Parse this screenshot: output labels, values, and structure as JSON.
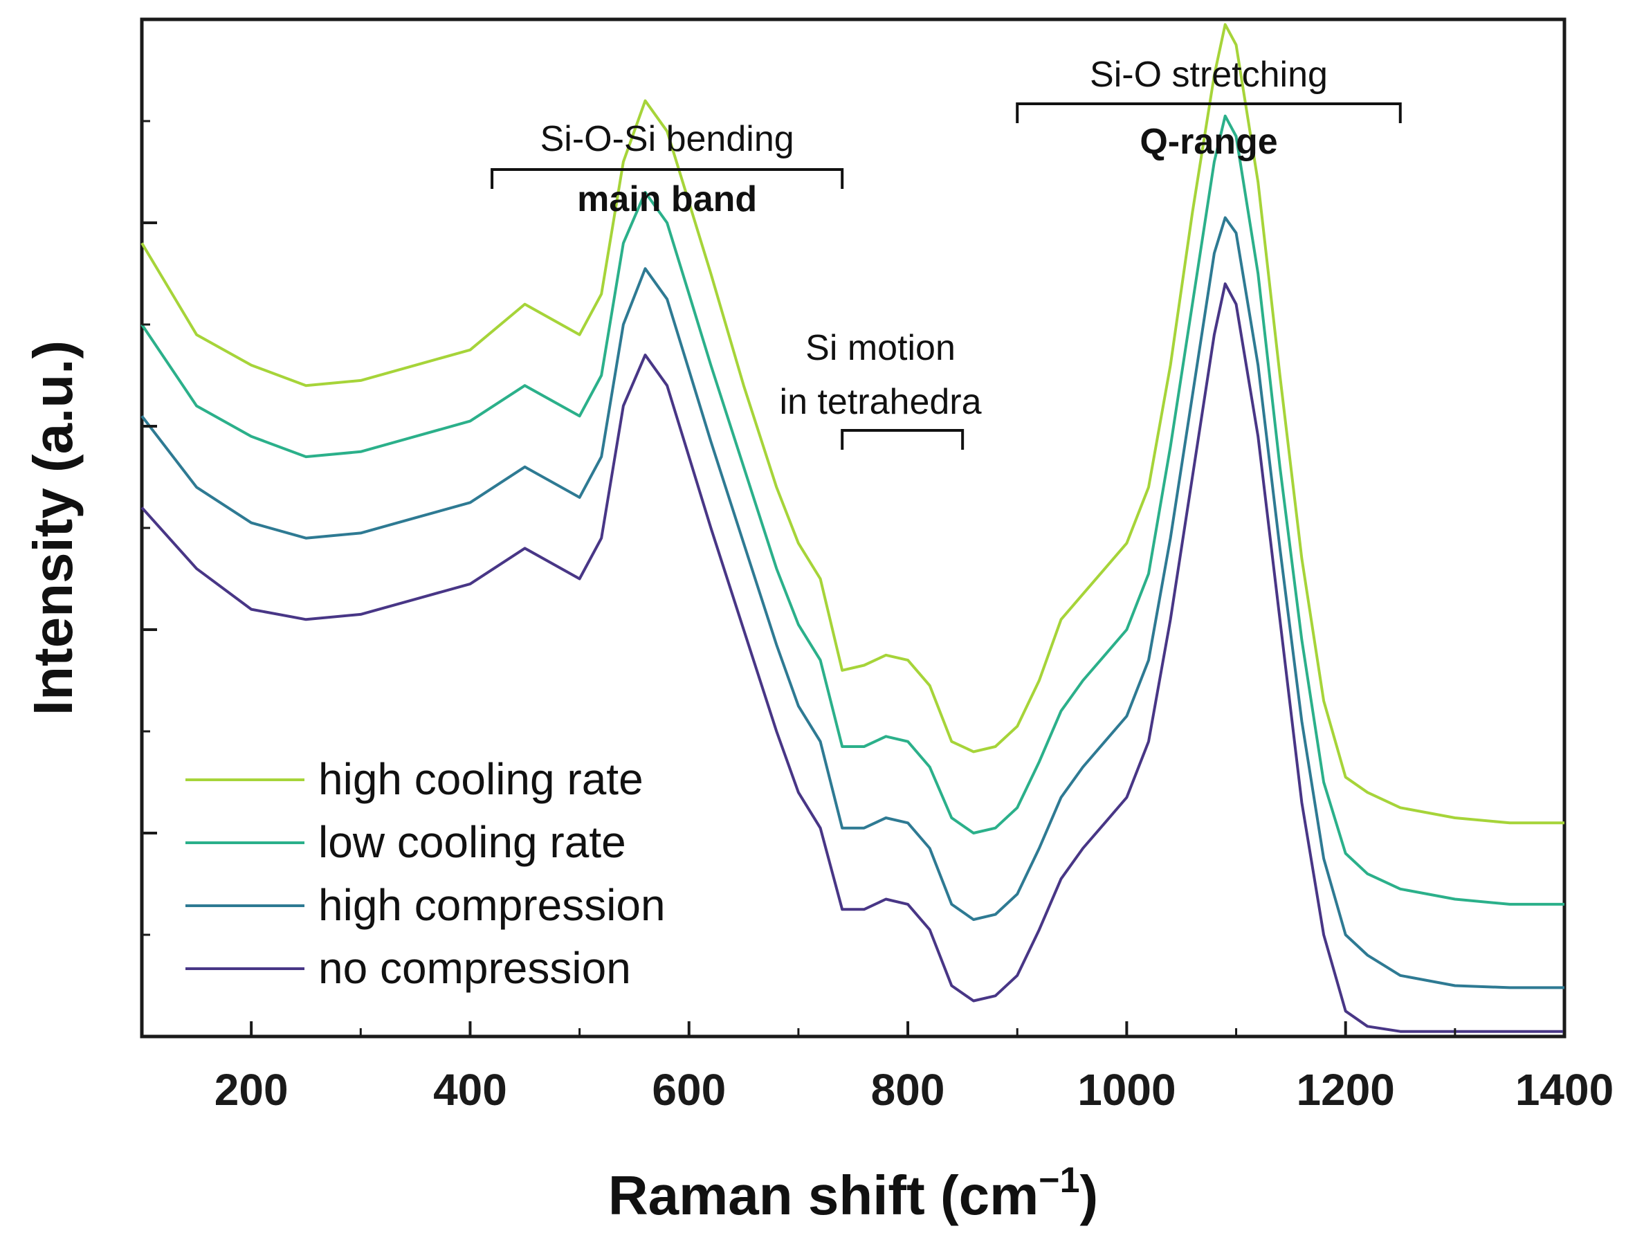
{
  "chart_data": {
    "type": "line",
    "title": "",
    "xlabel": "Raman shift (cm",
    "xlabel_superscript": "−1",
    "xlabel_suffix": ")",
    "ylabel": "Intensity (a.u.)",
    "xlim": [
      100,
      1400
    ],
    "ylim": [
      0,
      10
    ],
    "x_ticks": [
      200,
      400,
      600,
      800,
      1000,
      1200,
      1400
    ],
    "y_ticks_unlabeled": [
      2.0,
      4.0,
      6.0,
      8.0
    ],
    "grid": false,
    "legend_position": "bottom-left",
    "annotations": [
      {
        "id": "bending",
        "line1": "Si-O-Si bending",
        "line2": "main band",
        "x_range": [
          420,
          740
        ]
      },
      {
        "id": "motion",
        "line1": "Si motion",
        "line2": "in tetrahedra",
        "x_range": [
          740,
          850
        ]
      },
      {
        "id": "stretching",
        "line1": "Si-O stretching",
        "line2": "Q-range",
        "x_range": [
          900,
          1250
        ]
      }
    ],
    "series": [
      {
        "name": "high cooling rate",
        "color": "#a6d439",
        "x": [
          100,
          150,
          200,
          250,
          300,
          350,
          400,
          450,
          500,
          520,
          540,
          560,
          580,
          600,
          620,
          650,
          680,
          700,
          720,
          740,
          760,
          780,
          800,
          820,
          840,
          860,
          880,
          900,
          920,
          940,
          960,
          980,
          1000,
          1020,
          1040,
          1060,
          1080,
          1090,
          1100,
          1120,
          1140,
          1160,
          1180,
          1200,
          1220,
          1250,
          1300,
          1350,
          1400
        ],
        "values": [
          7.8,
          6.9,
          6.6,
          6.4,
          6.45,
          6.6,
          6.75,
          7.2,
          6.9,
          7.3,
          8.6,
          9.2,
          8.9,
          8.2,
          7.5,
          6.4,
          5.4,
          4.85,
          4.5,
          3.6,
          3.65,
          3.75,
          3.7,
          3.45,
          2.9,
          2.8,
          2.85,
          3.05,
          3.5,
          4.1,
          4.35,
          4.6,
          4.85,
          5.4,
          6.6,
          8.1,
          9.45,
          9.95,
          9.75,
          8.4,
          6.5,
          4.7,
          3.3,
          2.55,
          2.4,
          2.25,
          2.15,
          2.1,
          2.1
        ]
      },
      {
        "name": "low cooling rate",
        "color": "#2bb08a",
        "x": [
          100,
          150,
          200,
          250,
          300,
          350,
          400,
          450,
          500,
          520,
          540,
          560,
          580,
          600,
          620,
          650,
          680,
          700,
          720,
          740,
          760,
          780,
          800,
          820,
          840,
          860,
          880,
          900,
          920,
          940,
          960,
          980,
          1000,
          1020,
          1040,
          1060,
          1080,
          1090,
          1100,
          1120,
          1140,
          1160,
          1180,
          1200,
          1220,
          1250,
          1300,
          1350,
          1400
        ],
        "values": [
          7.0,
          6.2,
          5.9,
          5.7,
          5.75,
          5.9,
          6.05,
          6.4,
          6.1,
          6.5,
          7.8,
          8.3,
          8.0,
          7.3,
          6.6,
          5.6,
          4.6,
          4.05,
          3.7,
          2.85,
          2.85,
          2.95,
          2.9,
          2.65,
          2.15,
          2.0,
          2.05,
          2.25,
          2.7,
          3.2,
          3.5,
          3.75,
          4.0,
          4.55,
          5.8,
          7.2,
          8.6,
          9.05,
          8.85,
          7.5,
          5.6,
          3.9,
          2.5,
          1.8,
          1.6,
          1.45,
          1.35,
          1.3,
          1.3
        ]
      },
      {
        "name": "high compression",
        "color": "#2e7a93",
        "x": [
          100,
          150,
          200,
          250,
          300,
          350,
          400,
          450,
          500,
          520,
          540,
          560,
          580,
          600,
          620,
          650,
          680,
          700,
          720,
          740,
          760,
          780,
          800,
          820,
          840,
          860,
          880,
          900,
          920,
          940,
          960,
          980,
          1000,
          1020,
          1040,
          1060,
          1080,
          1090,
          1100,
          1120,
          1140,
          1160,
          1180,
          1200,
          1220,
          1250,
          1300,
          1350,
          1400
        ],
        "values": [
          6.1,
          5.4,
          5.05,
          4.9,
          4.95,
          5.1,
          5.25,
          5.6,
          5.3,
          5.7,
          7.0,
          7.55,
          7.25,
          6.55,
          5.85,
          4.85,
          3.85,
          3.25,
          2.9,
          2.05,
          2.05,
          2.15,
          2.1,
          1.85,
          1.3,
          1.15,
          1.2,
          1.4,
          1.85,
          2.35,
          2.65,
          2.9,
          3.15,
          3.7,
          4.9,
          6.3,
          7.7,
          8.05,
          7.9,
          6.6,
          4.8,
          3.1,
          1.75,
          1.0,
          0.8,
          0.6,
          0.5,
          0.48,
          0.48
        ]
      },
      {
        "name": "no compression",
        "color": "#483686",
        "x": [
          100,
          150,
          200,
          250,
          300,
          350,
          400,
          450,
          500,
          520,
          540,
          560,
          580,
          600,
          620,
          650,
          680,
          700,
          720,
          740,
          760,
          780,
          800,
          820,
          840,
          860,
          880,
          900,
          920,
          940,
          960,
          980,
          1000,
          1020,
          1040,
          1060,
          1080,
          1090,
          1100,
          1120,
          1140,
          1160,
          1180,
          1200,
          1220,
          1250,
          1300,
          1350,
          1400
        ],
        "values": [
          5.2,
          4.6,
          4.2,
          4.1,
          4.15,
          4.3,
          4.45,
          4.8,
          4.5,
          4.9,
          6.2,
          6.7,
          6.4,
          5.7,
          5.0,
          4.0,
          3.0,
          2.4,
          2.05,
          1.25,
          1.25,
          1.35,
          1.3,
          1.05,
          0.5,
          0.35,
          0.4,
          0.6,
          1.05,
          1.55,
          1.85,
          2.1,
          2.35,
          2.9,
          4.1,
          5.5,
          6.9,
          7.4,
          7.2,
          5.9,
          4.1,
          2.3,
          1.0,
          0.25,
          0.1,
          0.05,
          0.05,
          0.05,
          0.05
        ]
      }
    ]
  }
}
